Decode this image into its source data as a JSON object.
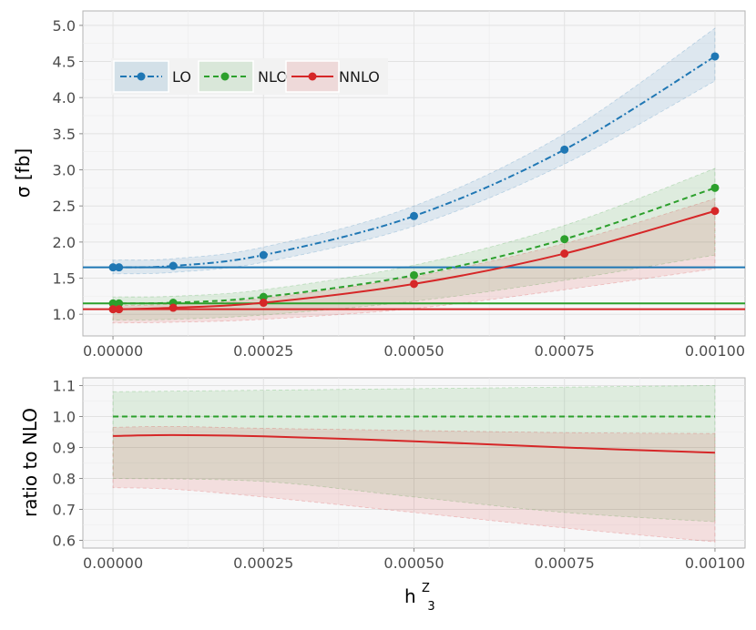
{
  "chart_data": [
    {
      "type": "line",
      "panel": "top",
      "xlabel_main": "h",
      "xlabel_sup": "Z",
      "xlabel_sub": "3",
      "ylabel": "σ [fb]",
      "xlim": [
        -5e-05,
        0.00105
      ],
      "ylim": [
        0.7,
        5.2
      ],
      "x_ticks": [
        0.0,
        0.00025,
        0.0005,
        0.00075,
        0.001
      ],
      "x_tick_labels": [
        "0.00000",
        "0.00025",
        "0.00050",
        "0.00075",
        "0.00100"
      ],
      "y_ticks": [
        1.0,
        1.5,
        2.0,
        2.5,
        3.0,
        3.5,
        4.0,
        4.5,
        5.0
      ],
      "y_tick_labels": [
        "1.0",
        "1.5",
        "2.0",
        "2.5",
        "3.0",
        "3.5",
        "4.0",
        "4.5",
        "5.0"
      ],
      "grid": true,
      "legend_position": "top-left",
      "series": [
        {
          "name": "LO",
          "color": "#1f77b4",
          "line_style": "dashdot",
          "x": [
            0.0,
            1e-05,
            0.0001,
            0.00025,
            0.0005,
            0.00075,
            0.001
          ],
          "y": [
            1.65,
            1.65,
            1.67,
            1.82,
            2.36,
            3.28,
            4.57
          ],
          "band_lower": [
            1.56,
            1.56,
            1.58,
            1.72,
            2.22,
            3.08,
            4.23
          ],
          "band_upper": [
            1.75,
            1.75,
            1.77,
            1.93,
            2.5,
            3.5,
            4.96
          ],
          "hline": 1.65
        },
        {
          "name": "NLO",
          "color": "#2ca02c",
          "line_style": "dashed",
          "x": [
            0.0,
            1e-05,
            0.0001,
            0.00025,
            0.0005,
            0.00075,
            0.001
          ],
          "y": [
            1.15,
            1.15,
            1.16,
            1.24,
            1.54,
            2.04,
            2.75
          ],
          "band_lower": [
            0.92,
            0.92,
            0.93,
            0.99,
            1.18,
            1.47,
            1.82
          ],
          "band_upper": [
            1.24,
            1.24,
            1.25,
            1.34,
            1.68,
            2.23,
            3.02
          ],
          "hline": 1.15
        },
        {
          "name": "NNLO",
          "color": "#d62728",
          "line_style": "solid",
          "x": [
            0.0,
            1e-05,
            0.0001,
            0.00025,
            0.0005,
            0.00075,
            0.001
          ],
          "y": [
            1.07,
            1.07,
            1.09,
            1.16,
            1.42,
            1.84,
            2.43
          ],
          "band_lower": [
            0.88,
            0.88,
            0.89,
            0.93,
            1.08,
            1.34,
            1.63
          ],
          "band_upper": [
            1.12,
            1.12,
            1.14,
            1.22,
            1.52,
            1.98,
            2.6
          ],
          "hline": 1.07
        }
      ]
    },
    {
      "type": "line",
      "panel": "bottom",
      "ylabel": "ratio to NLO",
      "xlim": [
        -5e-05,
        0.00105
      ],
      "ylim": [
        0.575,
        1.125
      ],
      "x_ticks": [
        0.0,
        0.00025,
        0.0005,
        0.00075,
        0.001
      ],
      "x_tick_labels": [
        "0.00000",
        "0.00025",
        "0.00050",
        "0.00075",
        "0.00100"
      ],
      "y_ticks": [
        0.6,
        0.7,
        0.8,
        0.9,
        1.0,
        1.1
      ],
      "y_tick_labels": [
        "0.6",
        "0.7",
        "0.8",
        "0.9",
        "1.0",
        "1.1"
      ],
      "grid": true,
      "series": [
        {
          "name": "NLO",
          "color": "#2ca02c",
          "line_style": "dashed",
          "x": [
            0.0,
            0.00025,
            0.0005,
            0.00075,
            0.001
          ],
          "y": [
            1.0,
            1.0,
            1.0,
            1.0,
            1.0
          ],
          "band_lower": [
            0.8,
            0.79,
            0.74,
            0.69,
            0.66
          ],
          "band_upper": [
            1.08,
            1.085,
            1.09,
            1.095,
            1.1
          ]
        },
        {
          "name": "NNLO",
          "color": "#d62728",
          "line_style": "solid",
          "x": [
            0.0,
            0.0001,
            0.00025,
            0.0005,
            0.00075,
            0.001
          ],
          "y": [
            0.937,
            0.94,
            0.936,
            0.92,
            0.9,
            0.883
          ],
          "band_lower": [
            0.77,
            0.765,
            0.74,
            0.69,
            0.64,
            0.595
          ],
          "band_upper": [
            0.965,
            0.968,
            0.962,
            0.955,
            0.948,
            0.945
          ]
        }
      ]
    }
  ]
}
